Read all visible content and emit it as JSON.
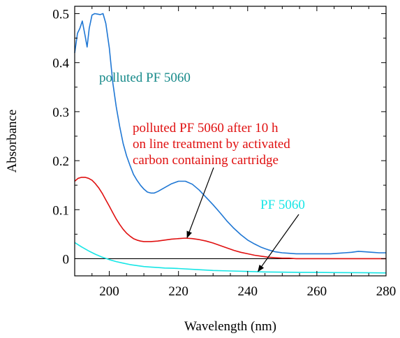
{
  "chart_data": {
    "type": "line",
    "title": "",
    "xlabel": "Wavelength (nm)",
    "ylabel": "Absorbance",
    "xlim": [
      190,
      280
    ],
    "ylim": [
      -0.035,
      0.515
    ],
    "x_ticks": [
      200,
      220,
      240,
      260,
      280
    ],
    "y_ticks": [
      0,
      0.1,
      0.2,
      0.3,
      0.4,
      0.5
    ],
    "x_tick_labels": [
      "200",
      "220",
      "240",
      "260",
      "280"
    ],
    "y_tick_labels": [
      "0",
      "0.1",
      "0.2",
      "0.3",
      "0.4",
      "0.5"
    ],
    "grid": false,
    "zero_line": true,
    "series": [
      {
        "color": "#1f77d4",
        "x": [
          190,
          190.8,
          191.5,
          192.2,
          193,
          193.6,
          194.2,
          195,
          195.8,
          196.6,
          197.4,
          198.2,
          199,
          200,
          201,
          202,
          203,
          204,
          205,
          206,
          207,
          208,
          209,
          210,
          211,
          212,
          213,
          214,
          216,
          218,
          220,
          222,
          224,
          226,
          228,
          230,
          232,
          234,
          236,
          238,
          240,
          242,
          244,
          246,
          248,
          250,
          252,
          254,
          256,
          258,
          260,
          262,
          264,
          266,
          268,
          270,
          272,
          274,
          276,
          278,
          280
        ],
        "values": [
          0.42,
          0.46,
          0.47,
          0.485,
          0.455,
          0.432,
          0.47,
          0.497,
          0.5,
          0.499,
          0.498,
          0.5,
          0.48,
          0.43,
          0.36,
          0.31,
          0.27,
          0.235,
          0.21,
          0.19,
          0.172,
          0.16,
          0.15,
          0.142,
          0.136,
          0.134,
          0.134,
          0.137,
          0.145,
          0.153,
          0.158,
          0.158,
          0.152,
          0.14,
          0.125,
          0.11,
          0.094,
          0.077,
          0.062,
          0.049,
          0.038,
          0.03,
          0.023,
          0.018,
          0.014,
          0.012,
          0.011,
          0.01,
          0.01,
          0.01,
          0.01,
          0.01,
          0.01,
          0.011,
          0.012,
          0.013,
          0.015,
          0.014,
          0.013,
          0.012,
          0.012
        ]
      },
      {
        "color": "#e01010",
        "x": [
          190,
          191,
          192,
          193,
          194,
          195,
          196,
          197,
          198,
          199,
          200,
          201,
          202,
          203,
          204,
          205,
          206,
          207,
          208,
          209,
          210,
          211,
          212,
          214,
          216,
          218,
          220,
          222,
          224,
          226,
          228,
          230,
          232,
          234,
          236,
          238,
          240,
          242,
          244,
          246,
          248,
          250,
          252,
          254,
          256,
          260,
          265,
          270,
          275,
          280
        ],
        "values": [
          0.158,
          0.164,
          0.166,
          0.166,
          0.164,
          0.16,
          0.153,
          0.144,
          0.133,
          0.12,
          0.107,
          0.094,
          0.081,
          0.07,
          0.06,
          0.052,
          0.046,
          0.041,
          0.038,
          0.036,
          0.035,
          0.035,
          0.035,
          0.036,
          0.038,
          0.04,
          0.041,
          0.042,
          0.041,
          0.039,
          0.036,
          0.032,
          0.027,
          0.022,
          0.017,
          0.013,
          0.01,
          0.007,
          0.005,
          0.003,
          0.002,
          0.001,
          0.001,
          0.0,
          0.0,
          0.0,
          0.0,
          0.0,
          0.0,
          0.0
        ]
      },
      {
        "color": "#17e6e6",
        "x": [
          190,
          192,
          194,
          196,
          198,
          200,
          202,
          204,
          206,
          208,
          210,
          212,
          214,
          216,
          218,
          220,
          225,
          230,
          235,
          240,
          245,
          250,
          255,
          260,
          265,
          270,
          275,
          280
        ],
        "values": [
          0.033,
          0.024,
          0.016,
          0.009,
          0.003,
          -0.002,
          -0.006,
          -0.009,
          -0.012,
          -0.014,
          -0.016,
          -0.017,
          -0.018,
          -0.019,
          -0.0195,
          -0.02,
          -0.022,
          -0.024,
          -0.025,
          -0.026,
          -0.027,
          -0.0275,
          -0.028,
          -0.028,
          -0.0283,
          -0.0285,
          -0.0287,
          -0.029
        ]
      }
    ],
    "annotations": [
      {
        "text": "polluted PF 5060",
        "color": "#178a8a"
      },
      {
        "text": "polluted PF 5060 after 10 h",
        "color": "#e01010"
      },
      {
        "text": "on line treatment by activated",
        "color": "#e01010"
      },
      {
        "text": "carbon containing cartridge",
        "color": "#e01010"
      },
      {
        "text": "PF 5060",
        "color": "#17e6e6"
      }
    ],
    "arrows": [
      {
        "to_x": 222.5,
        "to_y": 0.043
      },
      {
        "to_x": 243,
        "to_y": -0.026
      }
    ]
  }
}
